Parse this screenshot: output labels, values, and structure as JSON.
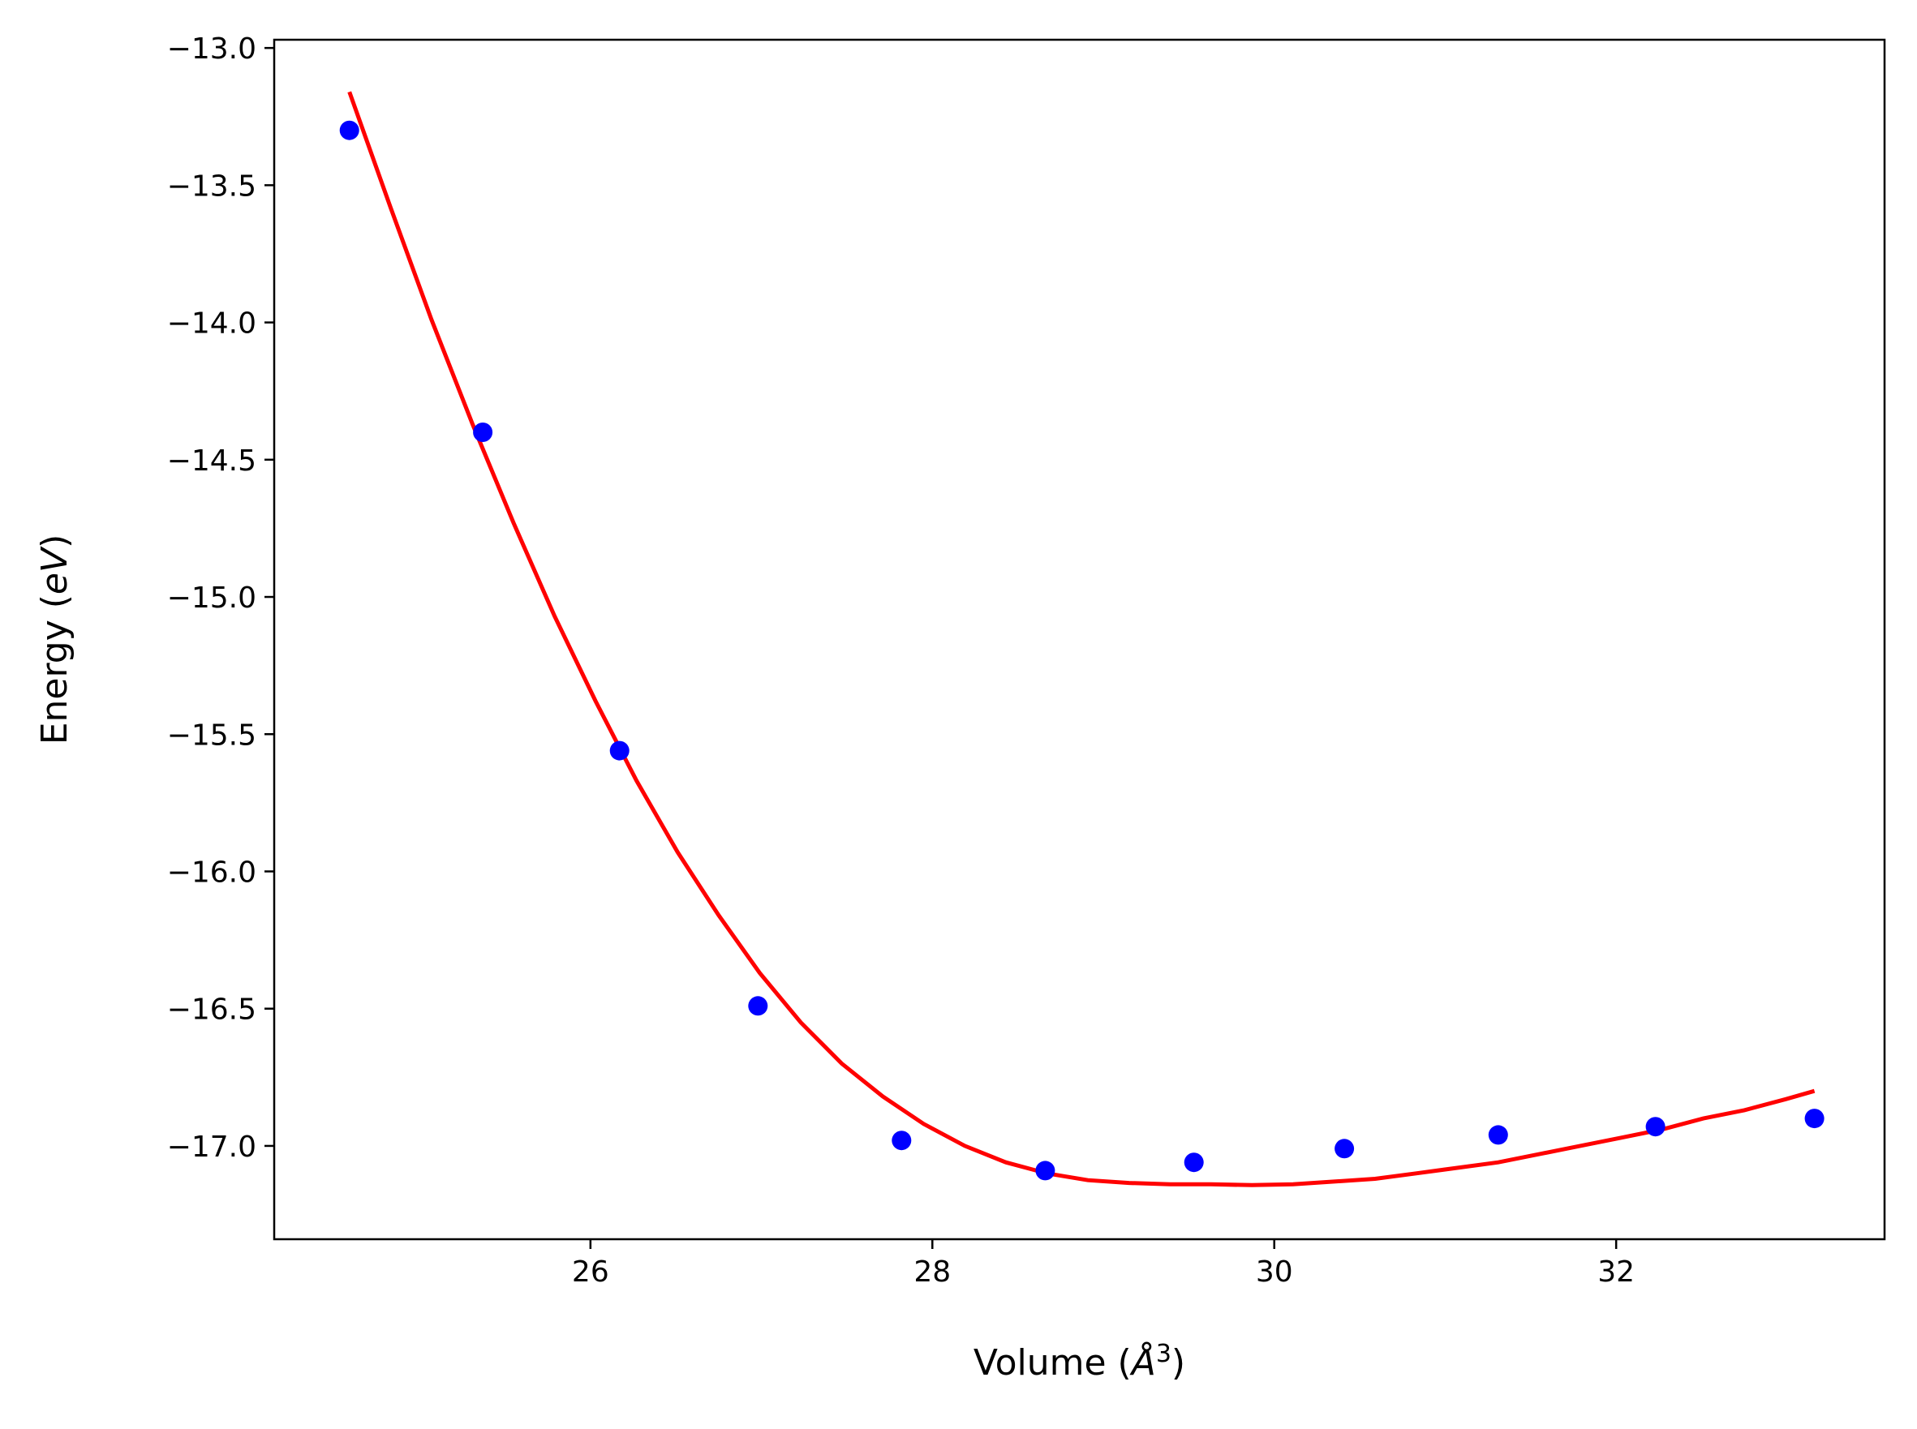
{
  "chart_data": {
    "type": "scatter",
    "title": "",
    "xlabel": "Volume ($\\AA^3$)",
    "ylabel": "Energy ($eV$)",
    "xlabel_parts": {
      "prefix": "Volume (",
      "symbol": "Å",
      "sup": "3",
      "suffix": ")"
    },
    "ylabel_parts": {
      "prefix": "Energy (",
      "unit": "eV",
      "suffix": ")"
    },
    "xlim": [
      24.15,
      33.57
    ],
    "ylim": [
      -17.34,
      -12.97
    ],
    "x_ticks": [
      26,
      28,
      30,
      32
    ],
    "x_tick_labels": [
      "26",
      "28",
      "30",
      "32"
    ],
    "y_ticks": [
      -13.0,
      -13.5,
      -14.0,
      -14.5,
      -15.0,
      -15.5,
      -16.0,
      -16.5,
      -17.0
    ],
    "y_tick_labels": [
      "−13.0",
      "−13.5",
      "−14.0",
      "−14.5",
      "−15.0",
      "−15.5",
      "−16.0",
      "−16.5",
      "−17.0"
    ],
    "grid": false,
    "series": [
      {
        "kind": "points",
        "color": "#0000ff",
        "x": [
          24.59,
          25.37,
          26.17,
          26.98,
          27.82,
          28.66,
          29.53,
          30.41,
          31.31,
          32.23,
          33.16
        ],
        "y": [
          -13.3,
          -14.4,
          -15.56,
          -16.49,
          -16.98,
          -17.09,
          -17.06,
          -17.01,
          -16.96,
          -16.93,
          -16.9
        ]
      },
      {
        "kind": "line",
        "color": "#ff0000",
        "x": [
          24.59,
          24.83,
          25.07,
          25.31,
          25.55,
          25.79,
          26.03,
          26.27,
          26.51,
          26.75,
          26.99,
          27.23,
          27.47,
          27.71,
          27.95,
          28.19,
          28.43,
          28.67,
          28.91,
          29.15,
          29.39,
          29.63,
          29.87,
          30.11,
          30.35,
          30.59,
          30.83,
          31.07,
          31.31,
          31.55,
          31.79,
          32.03,
          32.27,
          32.51,
          32.75,
          32.99,
          33.16
        ],
        "y": [
          -13.16,
          -13.58,
          -13.99,
          -14.37,
          -14.73,
          -15.07,
          -15.38,
          -15.67,
          -15.93,
          -16.16,
          -16.37,
          -16.55,
          -16.7,
          -16.82,
          -16.92,
          -17.0,
          -17.06,
          -17.1,
          -17.125,
          -17.135,
          -17.14,
          -17.14,
          -17.143,
          -17.14,
          -17.13,
          -17.12,
          -17.1,
          -17.08,
          -17.06,
          -17.03,
          -17.0,
          -16.97,
          -16.94,
          -16.9,
          -16.87,
          -16.83,
          -16.8
        ]
      }
    ]
  }
}
